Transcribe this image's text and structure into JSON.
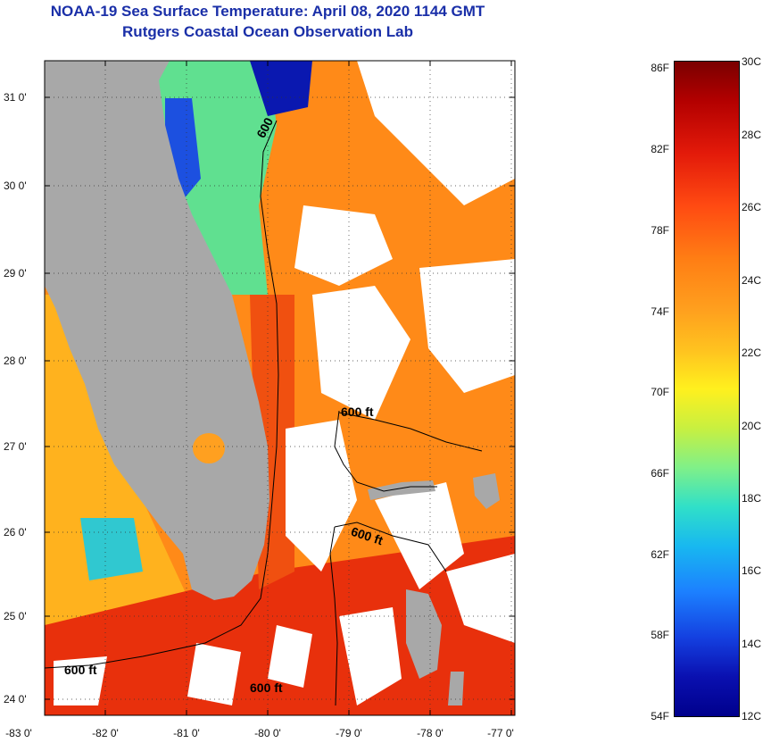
{
  "title": {
    "line1": "NOAA-19 Sea Surface Temperature:  April 08, 2020 1144 GMT",
    "line2": "Rutgers Coastal Ocean Observation Lab"
  },
  "map": {
    "lat_labels": [
      "31 0'",
      "30 0'",
      "29 0'",
      "28 0'",
      "27 0'",
      "26 0'",
      "25 0'",
      "24 0'"
    ],
    "lon_labels": [
      "-83 0'",
      "-82 0'",
      "-81 0'",
      "-80 0'",
      "-79 0'",
      "-78 0'",
      "-77 0'"
    ],
    "contour_labels": [
      "600",
      "600 ft",
      "600 ft",
      "600 ft",
      "600 ft"
    ],
    "colors": {
      "land": "#a8a8a8",
      "cloud": "#ffffff",
      "warm": "#ff7a14",
      "hot": "#e8200a",
      "cool": "#40d8a0",
      "cold": "#0a20b0"
    }
  },
  "colorbar": {
    "fahrenheit": [
      "86F",
      "82F",
      "78F",
      "74F",
      "70F",
      "66F",
      "62F",
      "58F",
      "54F"
    ],
    "celsius": [
      "30C",
      "28C",
      "26C",
      "24C",
      "22C",
      "20C",
      "18C",
      "16C",
      "14C",
      "12C"
    ],
    "range_f": [
      54,
      86
    ],
    "range_c": [
      12,
      30
    ]
  }
}
